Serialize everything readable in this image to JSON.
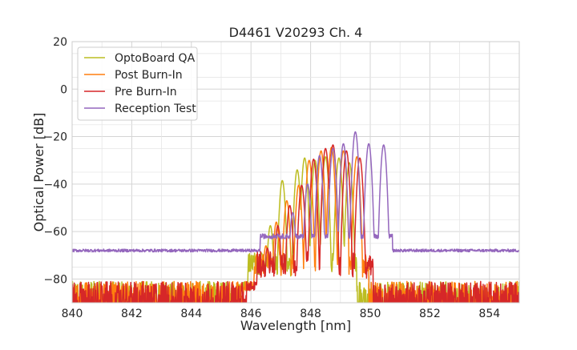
{
  "chart_data": {
    "type": "line",
    "title": "D4461 V20293 Ch. 4",
    "xlabel": "Wavelength [nm]",
    "ylabel": "Optical Power [dB]",
    "xlim": [
      840,
      855
    ],
    "ylim": [
      -90,
      20
    ],
    "xticks": [
      840,
      842,
      844,
      846,
      848,
      850,
      852,
      854
    ],
    "yticks": [
      20,
      0,
      -20,
      -40,
      -60,
      -80
    ],
    "xtick_labels": [
      "840",
      "842",
      "844",
      "846",
      "848",
      "850",
      "852",
      "854"
    ],
    "ytick_labels": [
      "20",
      "0",
      "−20",
      "−40",
      "−60",
      "−80"
    ],
    "grid": true,
    "legend_position": "top-left",
    "noise_floor_dB": -83,
    "series": [
      {
        "name": "OptoBoard QA",
        "color": "#bcbd22",
        "baseline_dB": -85,
        "band_nm": [
          845.9,
          849.55
        ],
        "peaks": [
          [
            846.35,
            -69
          ],
          [
            846.65,
            -57.5
          ],
          [
            847.05,
            -38.5
          ],
          [
            847.55,
            -34
          ],
          [
            847.8,
            -29
          ],
          [
            848.15,
            -30
          ],
          [
            848.5,
            -28.5
          ],
          [
            848.95,
            -29
          ],
          [
            849.3,
            -31
          ]
        ]
      },
      {
        "name": "Post Burn-In",
        "color": "#ff7f0e",
        "baseline_dB": -85,
        "band_nm": [
          846.1,
          849.95
        ],
        "peaks": [
          [
            846.5,
            -66
          ],
          [
            846.85,
            -56
          ],
          [
            847.2,
            -47
          ],
          [
            847.6,
            -40.5
          ],
          [
            847.95,
            -30
          ],
          [
            848.35,
            -26
          ],
          [
            848.7,
            -24.5
          ],
          [
            849.1,
            -26
          ],
          [
            849.55,
            -28.5
          ]
        ]
      },
      {
        "name": "Pre Burn-In",
        "color": "#d62728",
        "baseline_dB": -85,
        "band_nm": [
          846.2,
          850.1
        ],
        "peaks": [
          [
            846.55,
            -67
          ],
          [
            846.9,
            -57.5
          ],
          [
            847.3,
            -49
          ],
          [
            847.7,
            -40.5
          ],
          [
            848.1,
            -29.5
          ],
          [
            848.5,
            -25
          ],
          [
            848.75,
            -23.5
          ],
          [
            849.2,
            -26
          ],
          [
            849.65,
            -29
          ]
        ]
      },
      {
        "name": "Reception Test",
        "color": "#9467bd",
        "baseline_dB": -68,
        "band_nm": [
          846.3,
          850.75
        ],
        "peaks": [
          [
            846.9,
            -61
          ],
          [
            847.4,
            -52
          ],
          [
            847.9,
            -40
          ],
          [
            848.3,
            -28
          ],
          [
            848.75,
            -25
          ],
          [
            849.1,
            -23
          ],
          [
            849.5,
            -18
          ],
          [
            849.95,
            -23
          ],
          [
            850.45,
            -23.5
          ]
        ]
      }
    ]
  }
}
